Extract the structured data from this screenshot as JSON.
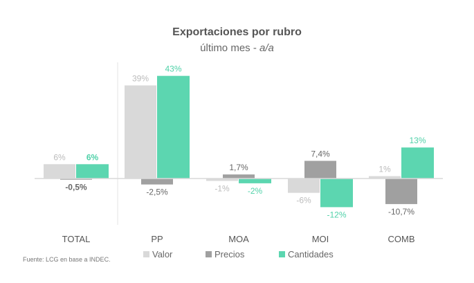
{
  "chart_data": {
    "type": "bar",
    "title": "Exportaciones por rubro",
    "subtitle_prefix": "último mes - ",
    "subtitle_italic": "a/a",
    "categories": [
      "TOTAL",
      "PP",
      "MOA",
      "MOI",
      "COMB"
    ],
    "series": [
      {
        "name": "Valor",
        "color": "#d9d9d9",
        "label_color": "#bbbbbb",
        "values": [
          6,
          39,
          -1,
          -6,
          1
        ],
        "labels": [
          "6%",
          "39%",
          "-1%",
          "-6%",
          "1%"
        ]
      },
      {
        "name": "Precios",
        "color": "#a0a0a0",
        "label_color": "#666666",
        "values": [
          -0.5,
          -2.5,
          1.7,
          7.4,
          -10.7
        ],
        "labels": [
          "-0,5%",
          "-2,5%",
          "1,7%",
          "7,4%",
          "-10,7%"
        ]
      },
      {
        "name": "Cantidades",
        "color": "#5cd6b0",
        "label_color": "#4fd1a8",
        "values": [
          6,
          43,
          -2,
          -12,
          13
        ],
        "labels": [
          "6%",
          "43%",
          "-2%",
          "-12%",
          "13%"
        ]
      }
    ],
    "legend_position": "bottom",
    "grid": false,
    "source": "Fuente: LCG en base a INDEC."
  }
}
